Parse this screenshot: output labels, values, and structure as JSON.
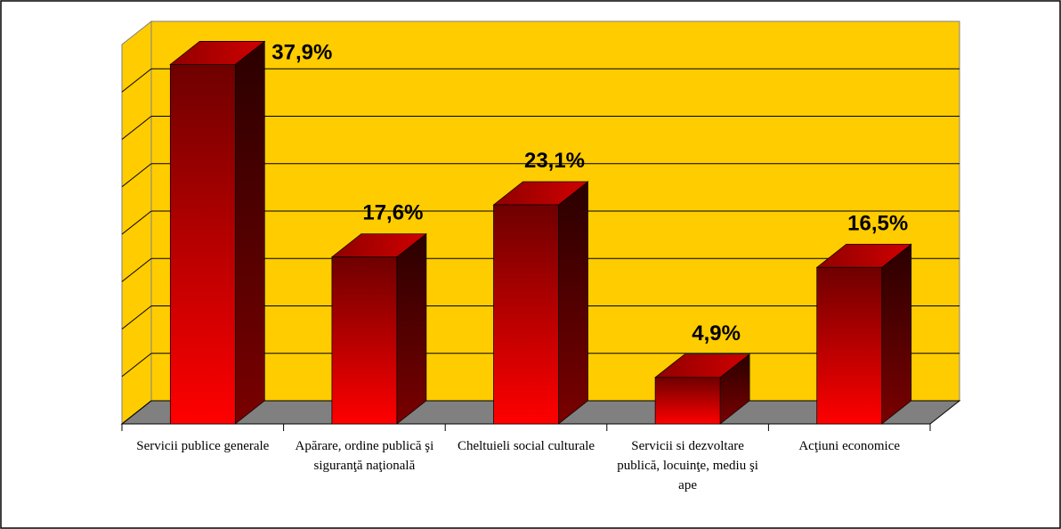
{
  "chart_data": {
    "type": "bar3d",
    "categories": [
      "Servicii publice generale",
      "Apărare, ordine publică şi siguranţă naţională",
      "Cheltuieli social culturale",
      "Servicii si dezvoltare publică, locuinţe, mediu şi ape",
      "Acţiuni economice"
    ],
    "values": [
      37.9,
      17.6,
      23.1,
      4.9,
      16.5
    ],
    "value_labels": [
      "37,9%",
      "17,6%",
      "23,1%",
      "4,9%",
      "16,5%"
    ],
    "ylim": [
      0,
      40
    ],
    "yticks": [
      0,
      5,
      10,
      15,
      20,
      25,
      30,
      35
    ],
    "grid": true,
    "wall_color": "#FFCC00",
    "floor_color": "#808080"
  }
}
